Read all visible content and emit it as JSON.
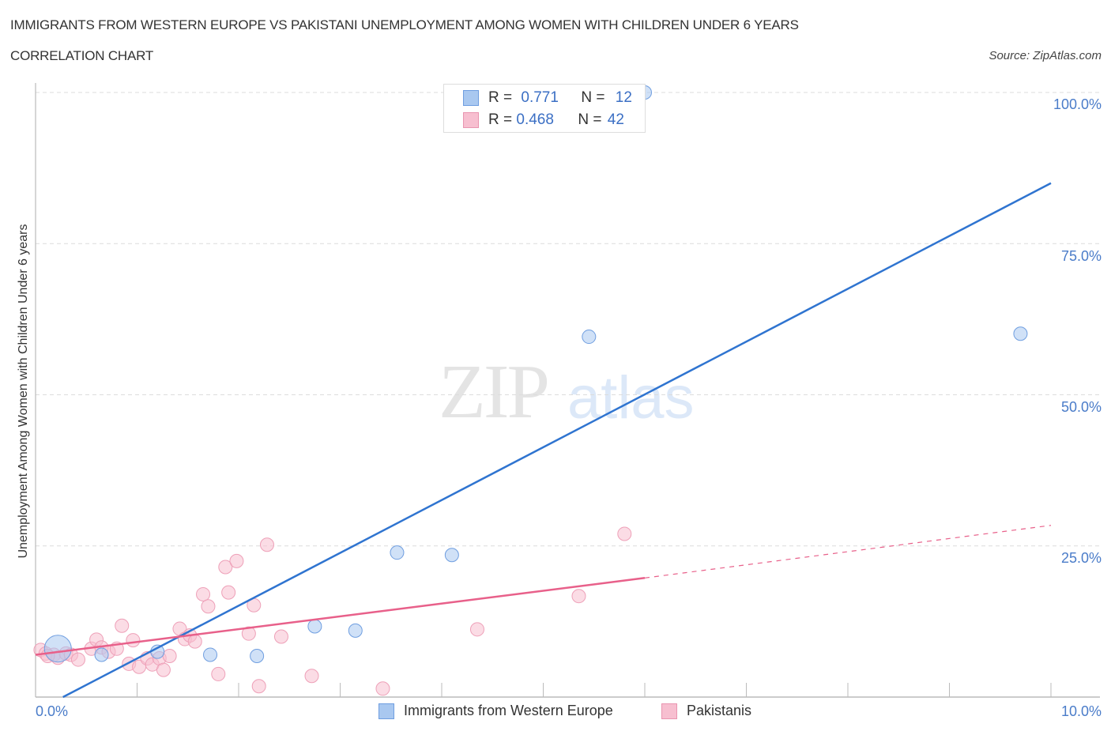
{
  "header": {
    "title": "IMMIGRANTS FROM WESTERN EUROPE VS PAKISTANI UNEMPLOYMENT AMONG WOMEN WITH CHILDREN UNDER 6 YEARS",
    "subtitle": "CORRELATION CHART",
    "source": "Source: ZipAtlas.com"
  },
  "watermark": {
    "part1": "ZIP",
    "part2": "atlas"
  },
  "axes": {
    "ylabel": "Unemployment Among Women with Children Under 6 years",
    "yticks": [
      "100.0%",
      "75.0%",
      "50.0%",
      "25.0%"
    ],
    "xticks": [
      "0.0%",
      "10.0%"
    ]
  },
  "legend_top": {
    "rows": [
      {
        "r_label": "R = ",
        "r_value": "0.771",
        "n_label": "N = ",
        "n_value": "12",
        "color": "#a9c8f0",
        "border": "#6f9ee0"
      },
      {
        "r_label": "R = ",
        "r_value": "0.468",
        "n_label": "N = ",
        "n_value": "42",
        "color": "#f7bfd0",
        "border": "#e995b0"
      }
    ]
  },
  "legend_bottom": [
    {
      "label": "Immigrants from Western Europe",
      "color": "#a9c8f0",
      "border": "#6f9ee0"
    },
    {
      "label": "Pakistanis",
      "color": "#f7bfd0",
      "border": "#e995b0"
    }
  ],
  "colors": {
    "blue_series": "#2f74d0",
    "pink_series": "#e8608a",
    "tick_label": "#4a7cc9",
    "grid": "#dddddd"
  },
  "chart_data": {
    "type": "scatter",
    "title": "IMMIGRANTS FROM WESTERN EUROPE VS PAKISTANI UNEMPLOYMENT AMONG WOMEN WITH CHILDREN UNDER 6 YEARS",
    "subtitle": "CORRELATION CHART",
    "xlabel": "",
    "ylabel": "Unemployment Among Women with Children Under 6 years",
    "xlim": [
      0,
      10
    ],
    "ylim": [
      0,
      100
    ],
    "x_unit": "%",
    "y_unit": "%",
    "grid": {
      "y": true,
      "x": false,
      "style": "dashed"
    },
    "legend_position": "top-center and bottom",
    "series": [
      {
        "name": "Immigrants from Western Europe",
        "R": 0.771,
        "N": 12,
        "points": [
          {
            "x": 0.22,
            "y": 8.0,
            "size": "large"
          },
          {
            "x": 0.65,
            "y": 7.0
          },
          {
            "x": 1.2,
            "y": 7.5
          },
          {
            "x": 1.72,
            "y": 7.0
          },
          {
            "x": 2.18,
            "y": 6.8
          },
          {
            "x": 2.75,
            "y": 11.7
          },
          {
            "x": 3.15,
            "y": 11.0
          },
          {
            "x": 3.56,
            "y": 23.9
          },
          {
            "x": 4.1,
            "y": 23.5
          },
          {
            "x": 5.45,
            "y": 59.6
          },
          {
            "x": 6.0,
            "y": 100.0
          },
          {
            "x": 9.7,
            "y": 60.1
          }
        ],
        "trendline": {
          "x0": 0.27,
          "y0": 0.0,
          "x1": 10.0,
          "y1": 85.0
        }
      },
      {
        "name": "Pakistanis",
        "R": 0.468,
        "N": 42,
        "points": [
          {
            "x": 0.05,
            "y": 7.8
          },
          {
            "x": 0.1,
            "y": 7.2
          },
          {
            "x": 0.18,
            "y": 7.0
          },
          {
            "x": 0.22,
            "y": 6.5
          },
          {
            "x": 0.3,
            "y": 7.2
          },
          {
            "x": 0.35,
            "y": 7.0
          },
          {
            "x": 0.42,
            "y": 6.2
          },
          {
            "x": 0.55,
            "y": 8.0
          },
          {
            "x": 0.6,
            "y": 9.5
          },
          {
            "x": 0.65,
            "y": 8.2
          },
          {
            "x": 0.72,
            "y": 7.5
          },
          {
            "x": 0.8,
            "y": 8.0
          },
          {
            "x": 0.85,
            "y": 11.8
          },
          {
            "x": 0.92,
            "y": 5.5
          },
          {
            "x": 0.96,
            "y": 9.4
          },
          {
            "x": 1.02,
            "y": 5.0
          },
          {
            "x": 1.1,
            "y": 6.4
          },
          {
            "x": 1.15,
            "y": 5.4
          },
          {
            "x": 1.22,
            "y": 6.4
          },
          {
            "x": 1.26,
            "y": 4.5
          },
          {
            "x": 1.32,
            "y": 6.8
          },
          {
            "x": 1.42,
            "y": 11.3
          },
          {
            "x": 1.47,
            "y": 9.6
          },
          {
            "x": 1.52,
            "y": 10.2
          },
          {
            "x": 1.57,
            "y": 9.2
          },
          {
            "x": 1.65,
            "y": 17.0
          },
          {
            "x": 1.7,
            "y": 15.0
          },
          {
            "x": 1.8,
            "y": 3.8
          },
          {
            "x": 1.87,
            "y": 21.5
          },
          {
            "x": 1.9,
            "y": 17.3
          },
          {
            "x": 1.98,
            "y": 22.5
          },
          {
            "x": 2.1,
            "y": 10.5
          },
          {
            "x": 2.15,
            "y": 15.2
          },
          {
            "x": 2.2,
            "y": 1.8
          },
          {
            "x": 2.28,
            "y": 25.2
          },
          {
            "x": 2.42,
            "y": 10.0
          },
          {
            "x": 2.72,
            "y": 3.5
          },
          {
            "x": 3.42,
            "y": 1.4
          },
          {
            "x": 4.35,
            "y": 11.2
          },
          {
            "x": 5.35,
            "y": 16.7
          },
          {
            "x": 5.8,
            "y": 27.0
          },
          {
            "x": 0.12,
            "y": 6.8
          }
        ],
        "trendline": {
          "x0": 0.0,
          "y0": 7.0,
          "x1": 6.0,
          "y1": 19.7,
          "dashed_to": {
            "x": 10.0,
            "y": 28.4
          }
        }
      }
    ]
  }
}
